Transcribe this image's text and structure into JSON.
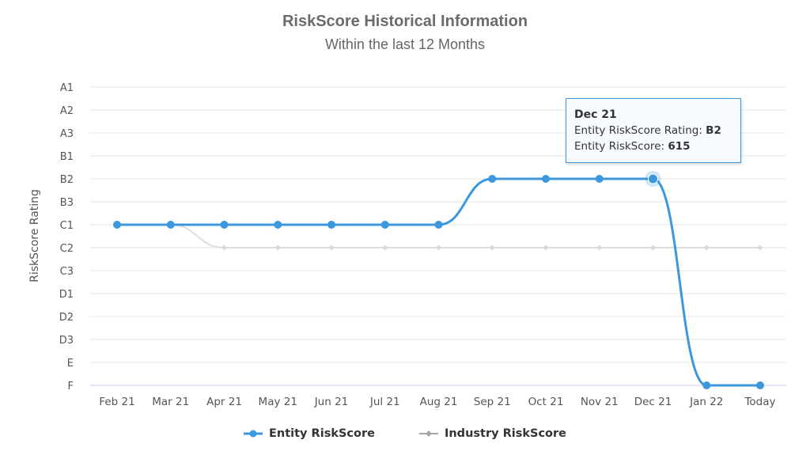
{
  "chart_data": {
    "type": "line",
    "title": "RiskScore Historical Information",
    "subtitle": "Within the last 12 Months",
    "ylabel": "RiskScore Rating",
    "xlabel": "",
    "categories": [
      "Feb 21",
      "Mar 21",
      "Apr 21",
      "May 21",
      "Jun 21",
      "Jul 21",
      "Aug 21",
      "Sep 21",
      "Oct 21",
      "Nov 21",
      "Dec 21",
      "Jan 22",
      "Today"
    ],
    "y_categories": [
      "A1",
      "A2",
      "A3",
      "B1",
      "B2",
      "B3",
      "C1",
      "C2",
      "C3",
      "D1",
      "D2",
      "D3",
      "E",
      "F"
    ],
    "grid": true,
    "legend_position": "bottom-center",
    "series": [
      {
        "name": "Entity RiskScore",
        "color": "#3d97dd",
        "marker": "circle",
        "values": [
          "C1",
          "C1",
          "C1",
          "C1",
          "C1",
          "C1",
          "C1",
          "B2",
          "B2",
          "B2",
          "B2",
          "F",
          "F"
        ]
      },
      {
        "name": "Industry RiskScore",
        "color": "#a6a6a6",
        "marker": "diamond",
        "values": [
          "C1",
          "C1",
          "C2",
          "C2",
          "C2",
          "C2",
          "C2",
          "C2",
          "C2",
          "C2",
          "C2",
          "C2",
          "C2"
        ]
      }
    ],
    "tooltip": {
      "header": "Dec 21",
      "rating_label": "Entity RiskScore Rating:",
      "rating_value": "B2",
      "score_label": "Entity RiskScore:",
      "score_value": "615"
    }
  }
}
